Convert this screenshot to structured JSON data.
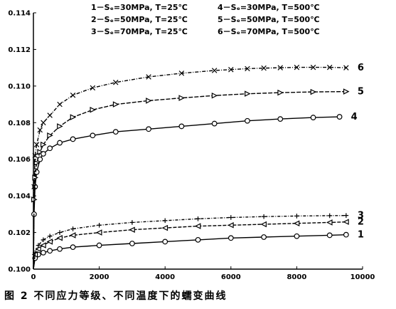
{
  "caption": "图 2   不同应力等级、不同温度下的蠕变曲线",
  "chart_data": {
    "type": "line",
    "xlim": [
      0,
      10000
    ],
    "ylim": [
      0.1,
      0.114
    ],
    "x_ticks": [
      0,
      2000,
      4000,
      6000,
      8000,
      10000
    ],
    "y_ticks": [
      0.1,
      0.102,
      0.104,
      0.106,
      0.108,
      0.11,
      0.112,
      0.114
    ],
    "y_tick_labels": [
      "0.100",
      "0.102",
      "0.104",
      "0.106",
      "0.108",
      "0.110",
      "0.112",
      "0.114"
    ],
    "grid": false,
    "legend_position": "top",
    "legend": [
      "1－Sₑ=30MPa, T=25℃",
      "2－Sₑ=50MPa, T=25℃",
      "3－Sₑ=70MPa, T=25℃",
      "4－Sₑ=30MPa, T=500℃",
      "5－Sₑ=50MPa, T=500℃",
      "6－Sₑ=70MPa, T=500℃"
    ],
    "series": [
      {
        "name": "1",
        "marker": "circle",
        "x": [
          0,
          50,
          150,
          300,
          500,
          800,
          1200,
          2000,
          3000,
          4000,
          5000,
          6000,
          7000,
          8000,
          9000,
          9500
        ],
        "y": [
          0.1,
          0.1006,
          0.1008,
          0.1009,
          0.101,
          0.1011,
          0.1012,
          0.1013,
          0.1014,
          0.1015,
          0.1016,
          0.1017,
          0.10175,
          0.1018,
          0.10185,
          0.10188
        ]
      },
      {
        "name": "2",
        "marker": "triangle-left",
        "x": [
          0,
          50,
          150,
          300,
          500,
          800,
          1200,
          2000,
          3000,
          4000,
          5000,
          6000,
          7000,
          8000,
          9000,
          9500
        ],
        "y": [
          0.1,
          0.1008,
          0.1011,
          0.1013,
          0.1015,
          0.1017,
          0.10185,
          0.102,
          0.10215,
          0.10225,
          0.10235,
          0.1024,
          0.10245,
          0.1025,
          0.10255,
          0.10258
        ]
      },
      {
        "name": "3",
        "marker": "plus",
        "x": [
          0,
          50,
          150,
          300,
          500,
          800,
          1200,
          2000,
          3000,
          4000,
          5000,
          6000,
          7000,
          8000,
          9000,
          9500
        ],
        "y": [
          0.1,
          0.1009,
          0.1013,
          0.1016,
          0.1018,
          0.102,
          0.1022,
          0.1024,
          0.10255,
          0.10265,
          0.10275,
          0.10282,
          0.10287,
          0.1029,
          0.10292,
          0.10293
        ]
      },
      {
        "name": "4",
        "marker": "circle",
        "x": [
          0,
          20,
          50,
          100,
          200,
          300,
          500,
          800,
          1200,
          1800,
          2500,
          3500,
          4500,
          5500,
          6500,
          7500,
          8500,
          9300
        ],
        "y": [
          0.1,
          0.103,
          0.1045,
          0.1053,
          0.106,
          0.1063,
          0.1066,
          0.1069,
          0.1071,
          0.1073,
          0.1075,
          0.10765,
          0.1078,
          0.10795,
          0.1081,
          0.1082,
          0.10828,
          0.10832
        ]
      },
      {
        "name": "5",
        "marker": "triangle-right",
        "x": [
          0,
          20,
          50,
          100,
          200,
          300,
          500,
          800,
          1200,
          1800,
          2500,
          3500,
          4500,
          5500,
          6500,
          7500,
          8500,
          9500
        ],
        "y": [
          0.1,
          0.1038,
          0.105,
          0.1058,
          0.1064,
          0.1068,
          0.1073,
          0.1078,
          0.1083,
          0.1087,
          0.109,
          0.1092,
          0.10935,
          0.10948,
          0.10958,
          0.10964,
          0.10968,
          0.1097
        ]
      },
      {
        "name": "6",
        "marker": "x",
        "x": [
          0,
          20,
          50,
          100,
          200,
          300,
          500,
          800,
          1200,
          1800,
          2500,
          3500,
          4500,
          5500,
          6000,
          6500,
          7000,
          7500,
          8000,
          8500,
          9000,
          9500
        ],
        "y": [
          0.1,
          0.1045,
          0.1062,
          0.1068,
          0.1076,
          0.108,
          0.1084,
          0.109,
          0.1095,
          0.1099,
          0.1102,
          0.1105,
          0.1107,
          0.11085,
          0.1109,
          0.11095,
          0.11098,
          0.111,
          0.11102,
          0.11102,
          0.11102,
          0.111
        ]
      }
    ]
  }
}
